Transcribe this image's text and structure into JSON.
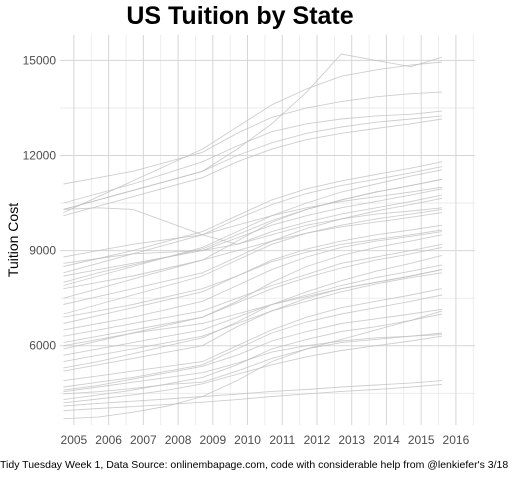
{
  "chart_data": {
    "type": "line",
    "title": "US Tuition by State",
    "xlabel": "",
    "ylabel": "Tuition Cost",
    "caption": "Tidy Tuesday Week 1, Data Source: onlinembapage.com, code with considerable help from @lenkiefer's 3/18",
    "xlim": [
      2004.6,
      2016.55
    ],
    "ylim": [
      3500,
      15800
    ],
    "x_ticks": [
      "2005",
      "2006",
      "2007",
      "2008",
      "2009",
      "2010",
      "2011",
      "2012",
      "2013",
      "2014",
      "2015",
      "2016"
    ],
    "y_ticks": [
      "6000",
      "9000",
      "12000",
      "15000"
    ],
    "legend": "none",
    "grid": true,
    "line_color": "#bdbdbd",
    "x": [
      2004.7,
      2005.7,
      2006.7,
      2007.7,
      2008.7,
      2009.7,
      2010.7,
      2011.7,
      2012.7,
      2013.7,
      2014.7,
      2015.6
    ],
    "series": [
      {
        "values": [
          4100,
          4180,
          4250,
          4320,
          4400,
          4470,
          4560,
          4620,
          4700,
          4760,
          4820,
          4900
        ]
      },
      {
        "values": [
          3950,
          4020,
          4080,
          4150,
          4220,
          4300,
          4400,
          4480,
          4560,
          4620,
          4700,
          4780
        ]
      },
      {
        "values": [
          4300,
          4450,
          4600,
          4800,
          5000,
          5400,
          5900,
          6200,
          6450,
          6600,
          6800,
          7000
        ]
      },
      {
        "values": [
          4480,
          4550,
          4650,
          4780,
          4850,
          5200,
          5600,
          5900,
          6100,
          6200,
          6300,
          6400
        ]
      },
      {
        "values": [
          4550,
          4700,
          4850,
          5000,
          5150,
          5450,
          5800,
          6000,
          6150,
          6250,
          6300,
          6350
        ]
      },
      {
        "values": [
          4600,
          4750,
          4950,
          5150,
          5350,
          5700,
          6150,
          6450,
          6700,
          6850,
          7000,
          7150
        ]
      },
      {
        "values": [
          4700,
          4850,
          5000,
          5200,
          5400,
          5900,
          6400,
          6750,
          7000,
          7200,
          7400,
          7600
        ]
      },
      {
        "values": [
          4900,
          5050,
          5200,
          5350,
          5500,
          6000,
          6500,
          6900,
          7200,
          7400,
          7600,
          7800
        ]
      },
      {
        "values": [
          4200,
          4320,
          4450,
          4600,
          4800,
          5100,
          5400,
          5650,
          5850,
          6000,
          6150,
          6300
        ]
      },
      {
        "values": [
          3700,
          3750,
          3900,
          4100,
          4400,
          4900,
          5500,
          5900,
          6200,
          6500,
          6800,
          7100
        ]
      },
      {
        "values": [
          5200,
          5400,
          5600,
          5800,
          6000,
          6600,
          7100,
          7500,
          7800,
          8000,
          8200,
          8400
        ]
      },
      {
        "values": [
          5300,
          5500,
          5750,
          6000,
          6250,
          6750,
          7300,
          7700,
          8050,
          8350,
          8600,
          8850
        ]
      },
      {
        "values": [
          5500,
          5700,
          5900,
          6100,
          6300,
          6700,
          7100,
          7400,
          7700,
          7950,
          8150,
          8300
        ]
      },
      {
        "values": [
          5700,
          5900,
          6100,
          6300,
          6500,
          6900,
          7300,
          7600,
          7900,
          8150,
          8350,
          8550
        ]
      },
      {
        "values": [
          5900,
          6150,
          6400,
          6650,
          6900,
          7350,
          7800,
          8150,
          8450,
          8700,
          8900,
          9100
        ]
      },
      {
        "values": [
          6000,
          6200,
          6400,
          6550,
          6700,
          7000,
          7300,
          7550,
          7800,
          8000,
          8200,
          8400
        ]
      },
      {
        "values": [
          6100,
          6300,
          6500,
          6700,
          6900,
          7400,
          8000,
          8500,
          8850,
          9100,
          9300,
          9500
        ]
      },
      {
        "values": [
          6300,
          6500,
          6700,
          6900,
          7100,
          7500,
          7900,
          8250,
          8600,
          8800,
          9000,
          9200
        ]
      },
      {
        "values": [
          6500,
          6700,
          6900,
          7150,
          7400,
          7900,
          8400,
          8800,
          9100,
          9300,
          9450,
          9600
        ]
      },
      {
        "values": [
          6700,
          6950,
          7200,
          7450,
          7700,
          8200,
          8700,
          9050,
          9300,
          9500,
          9650,
          9800
        ]
      },
      {
        "values": [
          6900,
          7100,
          7300,
          7550,
          7800,
          8200,
          8650,
          8950,
          9200,
          9350,
          9500,
          9650
        ]
      },
      {
        "values": [
          7000,
          7300,
          7600,
          7900,
          8200,
          8700,
          9200,
          9550,
          9800,
          10000,
          10150,
          10300
        ]
      },
      {
        "values": [
          7300,
          7550,
          7800,
          8050,
          8300,
          8800,
          9300,
          9700,
          10000,
          10250,
          10450,
          10650
        ]
      },
      {
        "values": [
          7500,
          7800,
          8100,
          8400,
          8700,
          9300,
          9900,
          10300,
          10600,
          10850,
          11050,
          11250
        ]
      },
      {
        "values": [
          7800,
          8000,
          8200,
          8450,
          8700,
          9000,
          9300,
          9550,
          9750,
          9900,
          10050,
          10200
        ]
      },
      {
        "values": [
          7900,
          8200,
          8500,
          8800,
          9100,
          9600,
          10100,
          10500,
          10850,
          11100,
          11350,
          11550
        ]
      },
      {
        "values": [
          8000,
          8300,
          8550,
          8800,
          9050,
          9500,
          9950,
          10300,
          10600,
          10850,
          11050,
          11250
        ]
      },
      {
        "values": [
          8200,
          8400,
          8600,
          8800,
          9000,
          9400,
          9800,
          10100,
          10350,
          10550,
          10750,
          10950
        ]
      },
      {
        "values": [
          8300,
          8600,
          8900,
          9200,
          9500,
          10000,
          10450,
          10800,
          11050,
          11250,
          11450,
          11650
        ]
      },
      {
        "values": [
          8500,
          8750,
          9000,
          9300,
          9600,
          10100,
          10600,
          10950,
          11200,
          11400,
          11600,
          11800
        ]
      },
      {
        "values": [
          8800,
          9000,
          9200,
          9350,
          9500,
          9800,
          10100,
          10350,
          10550,
          10700,
          10850,
          11000
        ]
      },
      {
        "values": [
          8600,
          8750,
          8900,
          8950,
          9000,
          9200,
          9600,
          9900,
          10150,
          10350,
          10550,
          10750
        ]
      },
      {
        "values": [
          10300,
          10350,
          10300,
          9900,
          9500,
          9200,
          9500,
          9800,
          10000,
          10150,
          10250,
          10350
        ]
      },
      {
        "values": [
          10100,
          10400,
          10700,
          11000,
          11300,
          11800,
          12200,
          12500,
          12700,
          12850,
          13000,
          13150
        ]
      },
      {
        "values": [
          10300,
          10600,
          10900,
          11200,
          11500,
          12000,
          12400,
          12700,
          12900,
          13050,
          13150,
          13250
        ]
      },
      {
        "values": [
          10500,
          10800,
          11100,
          11450,
          11800,
          12300,
          12750,
          13000,
          13150,
          13250,
          13300,
          13400
        ]
      },
      {
        "values": [
          11100,
          11300,
          11500,
          11800,
          12100,
          12700,
          13200,
          13500,
          13700,
          13850,
          13950,
          14000
        ]
      },
      {
        "values": [
          10200,
          10700,
          11200,
          11700,
          12200,
          12900,
          13600,
          14100,
          14500,
          14700,
          14850,
          14950
        ]
      },
      {
        "values": [
          10300,
          10600,
          10900,
          11200,
          11500,
          12200,
          13000,
          14000,
          15200,
          15000,
          14800,
          15100
        ]
      }
    ]
  }
}
